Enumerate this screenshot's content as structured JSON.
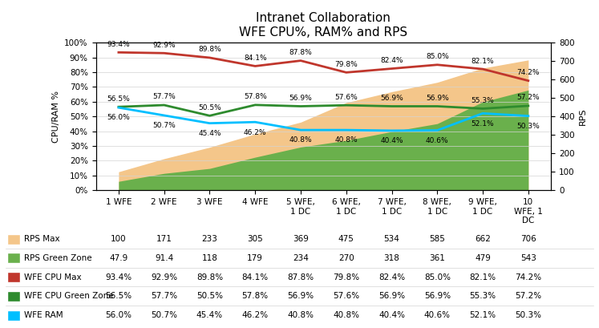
{
  "chart_data": {
    "type": "line",
    "title": "Intranet Collaboration\nWFE CPU%, RAM% and RPS",
    "categories": [
      "1 WFE",
      "2 WFE",
      "3 WFE",
      "4 WFE",
      "5 WFE,\n1 DC",
      "6 WFE,\n1 DC",
      "7 WFE,\n1 DC",
      "8 WFE,\n1 DC",
      "9 WFE,\n1 DC",
      "10\nWFE, 1\nDC"
    ],
    "ylabel": "CPU/RAM %",
    "y2label": "RPS",
    "ylim": [
      0,
      100
    ],
    "yticks": [
      {
        "value": 0,
        "label": "0%"
      },
      {
        "value": 10,
        "label": "10%"
      },
      {
        "value": 20,
        "label": "20%"
      },
      {
        "value": 30,
        "label": "30%"
      },
      {
        "value": 40,
        "label": "40%"
      },
      {
        "value": 50,
        "label": "50%"
      },
      {
        "value": 60,
        "label": "60%"
      },
      {
        "value": 70,
        "label": "70%"
      },
      {
        "value": 80,
        "label": "80%"
      },
      {
        "value": 90,
        "label": "90%"
      },
      {
        "value": 100,
        "label": "100%"
      }
    ],
    "y2lim": [
      0,
      800
    ],
    "y2ticks": [
      0,
      100,
      200,
      300,
      400,
      500,
      600,
      700,
      800
    ],
    "grid": true,
    "series": [
      {
        "name": "RPS Max",
        "type": "area",
        "axis": "y2",
        "color": "#F4C68A",
        "values": [
          100,
          171,
          233,
          305,
          369,
          475,
          534,
          585,
          662,
          706
        ]
      },
      {
        "name": "RPS Green Zone",
        "type": "area",
        "axis": "y2",
        "color": "#6AB04C",
        "values": [
          47.9,
          91.4,
          118,
          179,
          234,
          270,
          318,
          361,
          479,
          543
        ]
      },
      {
        "name": "WFE CPU Max",
        "type": "line",
        "color": "#C0362C",
        "data_labels": true,
        "values": [
          93.4,
          92.9,
          89.8,
          84.1,
          87.8,
          79.8,
          82.4,
          85.0,
          82.1,
          74.2
        ],
        "value_labels": [
          "93.4%",
          "92.9%",
          "89.8%",
          "84.1%",
          "87.8%",
          "79.8%",
          "82.4%",
          "85.0%",
          "82.1%",
          "74.2%"
        ]
      },
      {
        "name": "WFE CPU Green Zone",
        "type": "line",
        "color": "#2E8B2E",
        "data_labels": true,
        "values": [
          56.5,
          57.7,
          50.5,
          57.8,
          56.9,
          57.6,
          56.9,
          56.9,
          55.3,
          57.2
        ],
        "value_labels": [
          "56.5%",
          "57.7%",
          "50.5%",
          "57.8%",
          "56.9%",
          "57.6%",
          "56.9%",
          "56.9%",
          "55.3%",
          "57.2%"
        ]
      },
      {
        "name": "WFE RAM",
        "type": "line",
        "color": "#00BFFF",
        "data_labels": true,
        "values": [
          56.0,
          50.7,
          45.4,
          46.2,
          40.8,
          40.8,
          40.4,
          40.6,
          52.1,
          50.3
        ],
        "value_labels": [
          "56.0%",
          "50.7%",
          "45.4%",
          "46.2%",
          "40.8%",
          "40.8%",
          "40.4%",
          "40.6%",
          "52.1%",
          "50.3%"
        ]
      }
    ]
  }
}
